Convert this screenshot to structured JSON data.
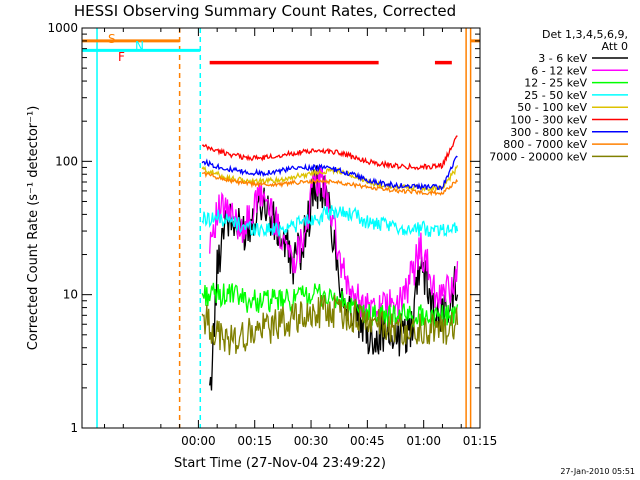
{
  "chart_data": {
    "type": "line",
    "title": "HESSI Observing Summary Count Rates, Corrected",
    "xlabel": "Start Time (27-Nov-04 23:49:22)",
    "ylabel": "Corrected Count Rate (s⁻¹ detector⁻¹)",
    "yscale": "log",
    "ylim": [
      1,
      1000
    ],
    "y_ticks": [
      {
        "v": 1,
        "label": "1"
      },
      {
        "v": 10,
        "label": "10"
      },
      {
        "v": 100,
        "label": "100"
      },
      {
        "v": 1000,
        "label": "1000"
      }
    ],
    "xlim": [
      -16,
      90
    ],
    "x_unit": "minutes after 23:45 UT",
    "x_ticks": [
      {
        "v": 15,
        "label": "00:00"
      },
      {
        "v": 30,
        "label": "00:15"
      },
      {
        "v": 45,
        "label": "00:30"
      },
      {
        "v": 60,
        "label": "00:45"
      },
      {
        "v": 75,
        "label": "01:00"
      },
      {
        "v": 90,
        "label": "01:15"
      }
    ],
    "legend": {
      "placement": "right",
      "header": [
        "Det 1,3,4,5,6,9,",
        "Att 0"
      ]
    },
    "series": [
      {
        "name": "3 - 6 keV",
        "color": "#000000",
        "x": [
          18,
          20,
          22,
          24,
          26,
          28,
          30,
          32,
          34,
          36,
          38,
          40,
          42,
          44,
          46,
          48,
          50,
          52,
          54,
          56,
          58,
          60,
          62,
          64,
          66,
          68,
          70,
          72,
          74,
          76,
          78,
          80,
          82,
          84
        ],
        "values": [
          1.5,
          15,
          40,
          34,
          30,
          31,
          42,
          54,
          40,
          30,
          24,
          17,
          21,
          34,
          66,
          62,
          42,
          17,
          9,
          7,
          6,
          5,
          5,
          5,
          5,
          5,
          5,
          6,
          20,
          12,
          7,
          7,
          8,
          14
        ]
      },
      {
        "name": "6 - 12 keV",
        "color": "#ff00ff",
        "x": [
          18,
          20,
          22,
          24,
          26,
          28,
          30,
          32,
          34,
          36,
          38,
          40,
          42,
          44,
          46,
          48,
          50,
          52,
          54,
          56,
          58,
          60,
          62,
          64,
          66,
          68,
          70,
          72,
          74,
          76,
          78,
          80,
          82,
          84
        ],
        "values": [
          27,
          40,
          44,
          37,
          33,
          34,
          45,
          58,
          44,
          32,
          26,
          18,
          23,
          38,
          72,
          68,
          48,
          22,
          13,
          10,
          9,
          8,
          8,
          8,
          8,
          8,
          10,
          14,
          24,
          16,
          10,
          10,
          11,
          14
        ]
      },
      {
        "name": "12 - 25 keV",
        "color": "#00ff00",
        "x": [
          16,
          20,
          24,
          28,
          32,
          36,
          40,
          44,
          48,
          52,
          56,
          60,
          64,
          68,
          72,
          76,
          80,
          84
        ],
        "values": [
          10,
          10,
          10,
          9,
          9,
          9,
          9,
          10,
          10,
          9,
          8,
          7,
          7,
          7,
          7,
          7,
          7,
          7
        ]
      },
      {
        "name": "25 - 50 keV",
        "color": "#00ffff",
        "x": [
          16,
          20,
          24,
          28,
          32,
          36,
          40,
          44,
          48,
          52,
          56,
          60,
          64,
          68,
          72,
          76,
          80,
          84
        ],
        "values": [
          37,
          38,
          35,
          32,
          31,
          31,
          33,
          36,
          39,
          42,
          40,
          35,
          33,
          32,
          31,
          31,
          31,
          32
        ]
      },
      {
        "name": "50 - 100 keV",
        "color": "#ddc200",
        "x": [
          16,
          20,
          24,
          28,
          32,
          36,
          40,
          44,
          48,
          52,
          56,
          60,
          64,
          68,
          72,
          76,
          80,
          84
        ],
        "values": [
          88,
          80,
          74,
          71,
          71,
          72,
          76,
          80,
          84,
          86,
          78,
          70,
          66,
          64,
          64,
          63,
          63,
          90
        ]
      },
      {
        "name": "100 - 300 keV",
        "color": "#ff0000",
        "x": [
          16,
          20,
          24,
          28,
          32,
          36,
          40,
          44,
          48,
          52,
          56,
          60,
          64,
          68,
          72,
          76,
          80,
          84
        ],
        "values": [
          130,
          120,
          112,
          106,
          106,
          110,
          115,
          118,
          120,
          118,
          108,
          100,
          95,
          92,
          91,
          91,
          93,
          160
        ]
      },
      {
        "name": "300 - 800 keV",
        "color": "#0000ff",
        "x": [
          16,
          20,
          24,
          28,
          32,
          36,
          40,
          44,
          48,
          52,
          56,
          60,
          64,
          68,
          72,
          76,
          80,
          84
        ],
        "values": [
          100,
          92,
          86,
          82,
          82,
          84,
          88,
          90,
          90,
          86,
          80,
          72,
          68,
          66,
          65,
          64,
          64,
          110
        ]
      },
      {
        "name": "800 - 7000 keV",
        "color": "#ff8000",
        "x": [
          16,
          20,
          24,
          28,
          32,
          36,
          40,
          44,
          48,
          52,
          56,
          60,
          64,
          68,
          72,
          76,
          80,
          84
        ],
        "values": [
          82,
          76,
          71,
          68,
          67,
          67,
          69,
          70,
          71,
          70,
          67,
          64,
          62,
          60,
          59,
          58,
          58,
          72
        ]
      },
      {
        "name": "7000 - 20000 keV",
        "color": "#808000",
        "x": [
          16,
          20,
          24,
          28,
          32,
          36,
          40,
          44,
          48,
          52,
          56,
          60,
          64,
          68,
          72,
          76,
          80,
          84
        ],
        "values": [
          7,
          5,
          4.5,
          5,
          5.5,
          6,
          6.5,
          7,
          7.5,
          7.5,
          7,
          6.5,
          6,
          5.5,
          5.5,
          5.5,
          5.5,
          6
        ]
      }
    ],
    "vertical_lines": [
      {
        "x": -12,
        "color": "#00ffff",
        "style": "solid"
      },
      {
        "x": 10,
        "color": "#ff8000",
        "style": "dashed"
      },
      {
        "x": 15.5,
        "color": "#00ffff",
        "style": "dashed"
      },
      {
        "x": 86.3,
        "color": "#ff8000",
        "style": "solid"
      },
      {
        "x": 87.5,
        "color": "#ff8000",
        "style": "solid"
      },
      {
        "x": 93.6,
        "color": "#00ffff",
        "style": "solid"
      },
      {
        "x": 104.5,
        "color": "#00ffff",
        "style": "dashed"
      }
    ],
    "bars": [
      {
        "label": "S",
        "color": "#ff8000",
        "y": 800,
        "segments": [
          [
            -16,
            10
          ],
          [
            87.5,
            115
          ]
        ]
      },
      {
        "label": "N",
        "color": "#00ffff",
        "y": 680,
        "segments": [
          [
            -16,
            15.5
          ],
          [
            93.6,
            110
          ]
        ]
      },
      {
        "label": "F",
        "color": "#ff0000",
        "y": 550,
        "segments": [
          [
            18,
            63
          ],
          [
            78,
            82.5
          ]
        ]
      }
    ]
  },
  "footer": {
    "timestamp": "27-Jan-2010 05:51"
  }
}
